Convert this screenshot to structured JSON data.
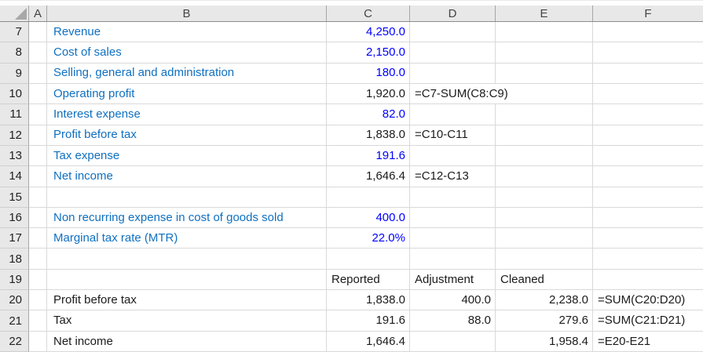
{
  "app": {
    "name": "spreadsheet-grid"
  },
  "colors": {
    "label_blue": "#0F70C0",
    "input_blue": "#0000FF",
    "calc_black": "#1B1B1B",
    "header_bg": "#E8E8E8",
    "gridline": "#D9D9D9"
  },
  "sheet": {
    "column_headers": [
      "A",
      "B",
      "C",
      "D",
      "E",
      "F"
    ],
    "rows": [
      {
        "n": "7",
        "B": "Revenue",
        "C": "4,250.0"
      },
      {
        "n": "8",
        "B": "Cost of sales",
        "C": "2,150.0"
      },
      {
        "n": "9",
        "B": "Selling, general and administration",
        "C": "180.0"
      },
      {
        "n": "10",
        "B": "Operating profit",
        "C": "1,920.0",
        "D": "=C7-SUM(C8:C9)"
      },
      {
        "n": "11",
        "B": "Interest expense",
        "C": "82.0"
      },
      {
        "n": "12",
        "B": "Profit before tax",
        "C": "1,838.0",
        "D": "=C10-C11"
      },
      {
        "n": "13",
        "B": "Tax expense",
        "C": "191.6"
      },
      {
        "n": "14",
        "B": "Net income",
        "C": "1,646.4",
        "D": "=C12-C13"
      },
      {
        "n": "15"
      },
      {
        "n": "16",
        "B": "Non recurring expense in cost of goods sold",
        "C": "400.0"
      },
      {
        "n": "17",
        "B": "Marginal tax rate (MTR)",
        "C": "22.0%"
      },
      {
        "n": "18"
      },
      {
        "n": "19",
        "C": "Reported",
        "D": "Adjustment",
        "E": "Cleaned"
      },
      {
        "n": "20",
        "B": "Profit before tax",
        "C": "1,838.0",
        "D": "400.0",
        "E": "2,238.0",
        "F": "=SUM(C20:D20)"
      },
      {
        "n": "21",
        "B": "Tax",
        "C": "191.6",
        "D": "88.0",
        "E": "279.6",
        "F": "=SUM(C21:D21)"
      },
      {
        "n": "22",
        "B": "Net income",
        "C": "1,646.4",
        "E": "1,958.4",
        "F": "=E20-E21"
      }
    ]
  }
}
